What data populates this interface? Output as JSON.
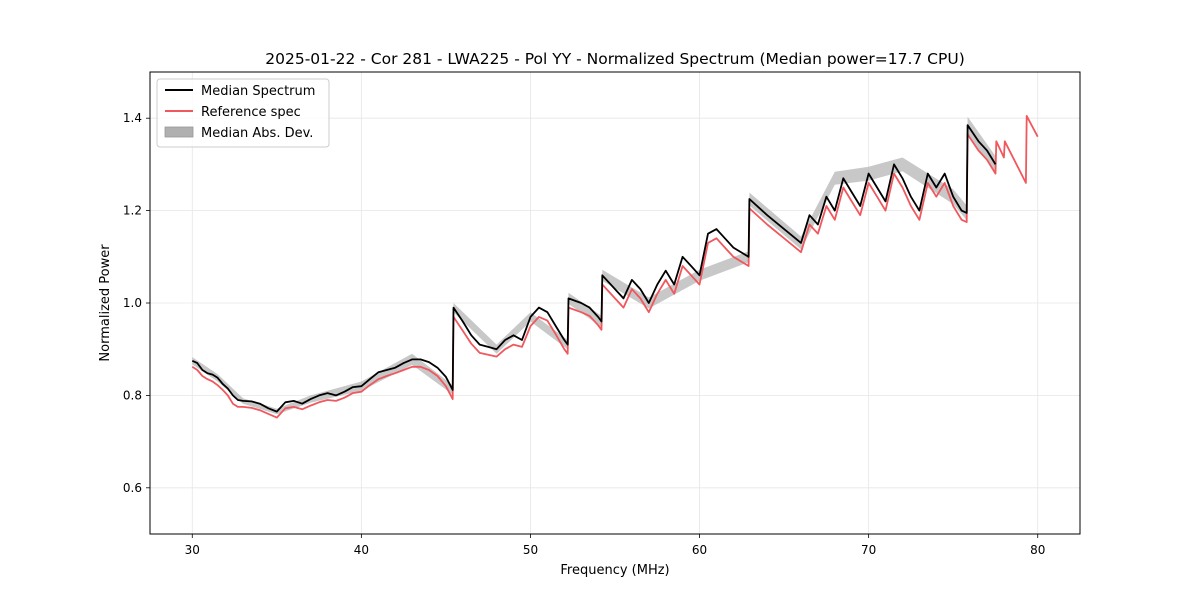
{
  "chart_data": {
    "type": "line",
    "title": "2025-01-22 - Cor 281 - LWA225 - Pol YY - Normalized Spectrum (Median power=17.7 CPU)",
    "xlabel": "Frequency (MHz)",
    "ylabel": "Normalized Power",
    "xlim": [
      27.5,
      82.5
    ],
    "ylim": [
      0.5,
      1.5
    ],
    "xticks": [
      30,
      40,
      50,
      60,
      70,
      80
    ],
    "yticks": [
      0.6,
      0.8,
      1.0,
      1.2,
      1.4
    ],
    "xtick_labels": [
      "30",
      "40",
      "50",
      "60",
      "70",
      "80"
    ],
    "ytick_labels": [
      "0.6",
      "0.8",
      "1.0",
      "1.2",
      "1.4"
    ],
    "grid": true,
    "legend_position": "top-left",
    "legend": [
      "Median Spectrum",
      "Reference spec",
      "Median Abs. Dev."
    ],
    "colors": {
      "median": "#000000",
      "reference": "#f0585e",
      "mad": "#b0b0b0"
    },
    "series": [
      {
        "name": "Median Spectrum",
        "x": [
          30.0,
          30.3,
          30.6,
          30.9,
          31.2,
          31.5,
          31.8,
          32.1,
          32.4,
          32.7,
          33.0,
          33.5,
          34.0,
          34.5,
          35.0,
          35.5,
          36.0,
          36.5,
          37.0,
          37.5,
          38.0,
          38.5,
          39.0,
          39.5,
          40.0,
          40.5,
          41.0,
          41.5,
          42.0,
          42.5,
          43.0,
          43.5,
          44.0,
          44.5,
          45.0,
          45.4,
          45.45,
          46.0,
          46.5,
          47.0,
          47.5,
          48.0,
          48.5,
          49.0,
          49.5,
          50.0,
          50.5,
          51.0,
          51.5,
          52.0,
          52.2,
          52.25,
          53.0,
          53.5,
          54.0,
          54.2,
          54.25,
          55.0,
          55.5,
          56.0,
          56.5,
          57.0,
          57.5,
          58.0,
          58.5,
          59.0,
          59.5,
          60.0,
          60.5,
          61.0,
          61.5,
          62.0,
          62.9,
          62.95,
          64.0,
          65.0,
          66.0,
          66.5,
          67.0,
          67.5,
          68.0,
          68.5,
          69.0,
          69.5,
          70.0,
          70.5,
          71.0,
          71.5,
          72.0,
          72.5,
          73.0,
          73.5,
          74.0,
          74.5,
          75.0,
          75.5,
          75.8,
          75.85,
          76.5,
          77.0,
          77.5
        ],
        "y": [
          0.875,
          0.87,
          0.855,
          0.848,
          0.845,
          0.838,
          0.825,
          0.815,
          0.8,
          0.79,
          0.788,
          0.787,
          0.782,
          0.772,
          0.765,
          0.785,
          0.788,
          0.782,
          0.792,
          0.8,
          0.805,
          0.8,
          0.808,
          0.818,
          0.82,
          0.835,
          0.85,
          0.855,
          0.86,
          0.87,
          0.878,
          0.878,
          0.872,
          0.86,
          0.84,
          0.812,
          0.99,
          0.96,
          0.93,
          0.91,
          0.905,
          0.9,
          0.92,
          0.93,
          0.92,
          0.97,
          0.99,
          0.98,
          0.95,
          0.92,
          0.91,
          1.01,
          1.0,
          0.99,
          0.97,
          0.96,
          1.06,
          1.03,
          1.01,
          1.05,
          1.03,
          1.0,
          1.04,
          1.07,
          1.04,
          1.1,
          1.08,
          1.06,
          1.15,
          1.16,
          1.14,
          1.12,
          1.1,
          1.225,
          1.19,
          1.16,
          1.13,
          1.19,
          1.17,
          1.23,
          1.2,
          1.27,
          1.24,
          1.21,
          1.28,
          1.25,
          1.22,
          1.3,
          1.27,
          1.23,
          1.2,
          1.28,
          1.25,
          1.28,
          1.23,
          1.2,
          1.195,
          1.385,
          1.35,
          1.33,
          1.3
        ]
      },
      {
        "name": "Reference spec",
        "x": [
          30.0,
          30.3,
          30.6,
          30.9,
          31.2,
          31.5,
          31.8,
          32.1,
          32.4,
          32.7,
          33.0,
          33.5,
          34.0,
          34.5,
          35.0,
          35.5,
          36.0,
          36.5,
          37.0,
          37.5,
          38.0,
          38.5,
          39.0,
          39.5,
          40.0,
          40.5,
          41.0,
          41.5,
          42.0,
          42.5,
          43.0,
          43.5,
          44.0,
          44.5,
          45.0,
          45.4,
          45.45,
          46.0,
          46.5,
          47.0,
          47.5,
          48.0,
          48.5,
          49.0,
          49.5,
          50.0,
          50.5,
          51.0,
          51.5,
          52.0,
          52.2,
          52.25,
          53.0,
          53.5,
          54.0,
          54.2,
          54.25,
          55.0,
          55.5,
          56.0,
          56.5,
          57.0,
          57.5,
          58.0,
          58.5,
          59.0,
          59.5,
          60.0,
          60.5,
          61.0,
          61.5,
          62.0,
          62.9,
          62.95,
          64.0,
          65.0,
          66.0,
          66.5,
          67.0,
          67.5,
          68.0,
          68.5,
          69.0,
          69.5,
          70.0,
          70.5,
          71.0,
          71.5,
          72.0,
          72.5,
          73.0,
          73.5,
          74.0,
          74.5,
          75.0,
          75.5,
          75.8,
          75.85,
          76.5,
          77.0,
          77.5,
          77.55,
          78.0,
          78.05,
          79.3,
          79.35,
          80.0
        ],
        "y": [
          0.862,
          0.855,
          0.842,
          0.835,
          0.83,
          0.822,
          0.812,
          0.8,
          0.782,
          0.775,
          0.775,
          0.773,
          0.768,
          0.76,
          0.752,
          0.772,
          0.775,
          0.77,
          0.778,
          0.785,
          0.79,
          0.788,
          0.795,
          0.805,
          0.808,
          0.822,
          0.835,
          0.842,
          0.848,
          0.855,
          0.862,
          0.862,
          0.855,
          0.842,
          0.82,
          0.792,
          0.97,
          0.94,
          0.912,
          0.892,
          0.888,
          0.884,
          0.9,
          0.91,
          0.905,
          0.95,
          0.97,
          0.962,
          0.932,
          0.9,
          0.89,
          0.99,
          0.98,
          0.972,
          0.952,
          0.942,
          1.04,
          1.01,
          0.99,
          1.03,
          1.01,
          0.98,
          1.02,
          1.05,
          1.02,
          1.08,
          1.06,
          1.04,
          1.13,
          1.14,
          1.12,
          1.1,
          1.08,
          1.205,
          1.17,
          1.14,
          1.11,
          1.17,
          1.15,
          1.21,
          1.18,
          1.25,
          1.22,
          1.19,
          1.26,
          1.23,
          1.2,
          1.28,
          1.25,
          1.21,
          1.18,
          1.26,
          1.23,
          1.26,
          1.21,
          1.18,
          1.175,
          1.365,
          1.33,
          1.31,
          1.28,
          1.35,
          1.315,
          1.35,
          1.26,
          1.405,
          1.36
        ]
      },
      {
        "name": "Median Abs. Dev.",
        "x": [
          30.0,
          31.5,
          33.0,
          35.0,
          37.0,
          40.0,
          43.0,
          45.4,
          45.45,
          48.0,
          50.0,
          52.2,
          52.25,
          54.2,
          54.25,
          57.0,
          60.0,
          62.9,
          62.95,
          66.0,
          68.0,
          70.0,
          72.0,
          75.0,
          75.8,
          75.85,
          77.5
        ],
        "y": [
          0.875,
          0.838,
          0.788,
          0.765,
          0.792,
          0.82,
          0.878,
          0.812,
          0.99,
          0.9,
          0.97,
          0.91,
          1.01,
          0.96,
          1.06,
          1.0,
          1.06,
          1.1,
          1.225,
          1.13,
          1.27,
          1.28,
          1.3,
          1.23,
          1.195,
          1.385,
          1.3
        ],
        "dev": [
          0.008,
          0.008,
          0.006,
          0.006,
          0.008,
          0.01,
          0.012,
          0.01,
          0.01,
          0.01,
          0.01,
          0.01,
          0.012,
          0.012,
          0.012,
          0.012,
          0.012,
          0.012,
          0.014,
          0.014,
          0.014,
          0.015,
          0.015,
          0.016,
          0.016,
          0.018,
          0.018
        ]
      }
    ]
  }
}
